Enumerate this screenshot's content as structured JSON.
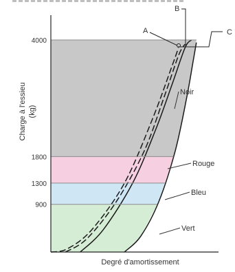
{
  "chart_data": {
    "type": "area",
    "title": "",
    "xlabel": "Degré d'amortissement",
    "ylabel": "Charge à l'essieu (kg)",
    "ylim": [
      0,
      4000
    ],
    "yticks": [
      900,
      1300,
      1800,
      4000
    ],
    "bands": [
      {
        "name": "Vert",
        "from": 0,
        "to": 900,
        "color": "#d5ecd5"
      },
      {
        "name": "Bleu",
        "from": 900,
        "to": 1300,
        "color": "#cfe6f4"
      },
      {
        "name": "Rouge",
        "from": 1300,
        "to": 1800,
        "color": "#f6cfe0"
      },
      {
        "name": "Noir",
        "from": 1800,
        "to": 4000,
        "color": "#c8c8c8"
      }
    ],
    "curves": [
      {
        "label": "A",
        "style": "dashed",
        "points": [
          [
            0.0,
            0
          ],
          [
            0.1,
            60
          ],
          [
            0.25,
            420
          ],
          [
            0.45,
            1300
          ],
          [
            0.62,
            2500
          ],
          [
            0.74,
            3500
          ],
          [
            0.78,
            3850
          ]
        ]
      },
      {
        "label": "B",
        "style": "dashed",
        "points": [
          [
            0.09,
            0
          ],
          [
            0.22,
            250
          ],
          [
            0.4,
            950
          ],
          [
            0.57,
            1900
          ],
          [
            0.69,
            2900
          ],
          [
            0.78,
            3700
          ],
          [
            0.82,
            3920
          ]
        ]
      },
      {
        "label": "C",
        "style": "solid",
        "points": [
          [
            0.18,
            0
          ],
          [
            0.32,
            420
          ],
          [
            0.5,
            1300
          ],
          [
            0.64,
            2300
          ],
          [
            0.74,
            3150
          ],
          [
            0.82,
            3850
          ],
          [
            0.86,
            4000
          ]
        ]
      },
      {
        "label": "",
        "style": "solid",
        "points": [
          [
            0.45,
            0
          ],
          [
            0.55,
            300
          ],
          [
            0.66,
            950
          ],
          [
            0.76,
            1900
          ],
          [
            0.83,
            2900
          ],
          [
            0.87,
            3600
          ],
          [
            0.89,
            3950
          ]
        ]
      }
    ],
    "annotations": [
      "A",
      "B",
      "C"
    ],
    "grid": false,
    "legend": "right"
  }
}
